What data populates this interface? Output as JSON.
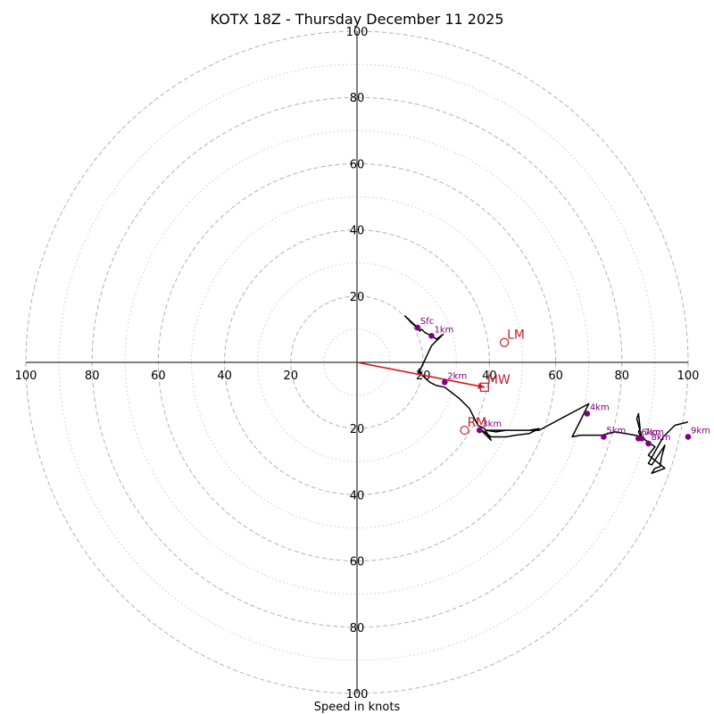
{
  "chart_data": {
    "type": "line",
    "title": "KOTX 18Z - Thursday December 11 2025",
    "xlabel": "Speed in knots",
    "ylabel": "",
    "xlim": [
      -100,
      100
    ],
    "ylim": [
      -100,
      100
    ],
    "rings": [
      20,
      40,
      60,
      80,
      100
    ],
    "minor_rings": [
      10,
      30,
      50,
      70,
      90
    ],
    "x_tick_labels": [
      {
        "value": -100,
        "label": "100"
      },
      {
        "value": -80,
        "label": "80"
      },
      {
        "value": -60,
        "label": "60"
      },
      {
        "value": -40,
        "label": "40"
      },
      {
        "value": -20,
        "label": "20"
      },
      {
        "value": 20,
        "label": "20"
      },
      {
        "value": 40,
        "label": "40"
      },
      {
        "value": 60,
        "label": "60"
      },
      {
        "value": 80,
        "label": "80"
      },
      {
        "value": 100,
        "label": "100"
      }
    ],
    "y_tick_labels": [
      {
        "value": 100,
        "label": "100"
      },
      {
        "value": 80,
        "label": "80"
      },
      {
        "value": 60,
        "label": "60"
      },
      {
        "value": 40,
        "label": "40"
      },
      {
        "value": 20,
        "label": "20"
      },
      {
        "value": -20,
        "label": "20"
      },
      {
        "value": -40,
        "label": "40"
      },
      {
        "value": -60,
        "label": "60"
      },
      {
        "value": -80,
        "label": "80"
      },
      {
        "value": -100,
        "label": "100"
      }
    ],
    "hodograph": {
      "name": "hodograph",
      "color": "#000000",
      "u": [
        18.3,
        14.5,
        19.0,
        19.5,
        20.5,
        21.5,
        22.5,
        24.0,
        26.0,
        22.5,
        18.5,
        18.8,
        19.2,
        22.0,
        24.0,
        26.5,
        31.0,
        34.0,
        36.5,
        38.5,
        40.5,
        37.0,
        40.5,
        45.0,
        48.0,
        52.0,
        55.0,
        52.0,
        48.0,
        45.0,
        42.0,
        39.0,
        55.0,
        70.0,
        65.0,
        67.5,
        74.0,
        78.0,
        81.0,
        84.0,
        86.0,
        84.5,
        85.0,
        85.5,
        85.0,
        85.5,
        86.0,
        86.5,
        88.5,
        90.0,
        88.0,
        93.0,
        89.0,
        90.0,
        91.5,
        92.0,
        93.0,
        89.0,
        88.0,
        92.5,
        96.0,
        100.0
      ],
      "v": [
        10.5,
        14.0,
        9.5,
        10.0,
        9.0,
        8.5,
        8.0,
        7.0,
        8.5,
        5.0,
        -3.5,
        -2.0,
        -3.5,
        -6.0,
        -7.0,
        -7.5,
        -11.0,
        -14.0,
        -19.0,
        -20.0,
        -23.5,
        -20.0,
        -22.5,
        -22.5,
        -22.0,
        -21.5,
        -20.0,
        -20.5,
        -20.5,
        -20.5,
        -21.0,
        -20.5,
        -20.5,
        -12.5,
        -22.5,
        -22.0,
        -22.0,
        -21.0,
        -21.5,
        -22.0,
        -22.5,
        -17.0,
        -15.5,
        -20.0,
        -21.0,
        -22.0,
        -22.5,
        -23.0,
        -24.5,
        -25.5,
        -28.0,
        -32.0,
        -33.5,
        -32.0,
        -31.5,
        -28.5,
        -25.0,
        -31.0,
        -30.5,
        -22.5,
        -19.0,
        -18.0
      ]
    },
    "height_markers": [
      {
        "label": "Sfc",
        "u": 18.3,
        "v": 10.5
      },
      {
        "label": "1km",
        "u": 22.5,
        "v": 8.0
      },
      {
        "label": "2km",
        "u": 26.5,
        "v": -6.0
      },
      {
        "label": "3km",
        "u": 37.0,
        "v": -20.5
      },
      {
        "label": "4km",
        "u": 69.5,
        "v": -15.5
      },
      {
        "label": "5km",
        "u": 74.5,
        "v": -22.5
      },
      {
        "label": "6km",
        "u": 85.0,
        "v": -23.0
      },
      {
        "label": "7km",
        "u": 86.0,
        "v": -23.0
      },
      {
        "label": "8km",
        "u": 88.0,
        "v": -24.5
      },
      {
        "label": "9km",
        "u": 100.0,
        "v": -22.5
      }
    ],
    "motions": [
      {
        "label": "LM",
        "symbol": "circle",
        "u": 44.5,
        "v": 6.0
      },
      {
        "label": "RM",
        "symbol": "circle",
        "u": 32.5,
        "v": -20.5
      },
      {
        "label": "MW",
        "symbol": "square",
        "u": 38.5,
        "v": -7.5
      }
    ],
    "shear_vector": {
      "u": 38.5,
      "v": -7.5,
      "color": "#dd1111"
    },
    "colors": {
      "hodograph": "#000000",
      "markers": "#800080",
      "motions": "#c02030",
      "grid": "#b3b3b3"
    }
  }
}
